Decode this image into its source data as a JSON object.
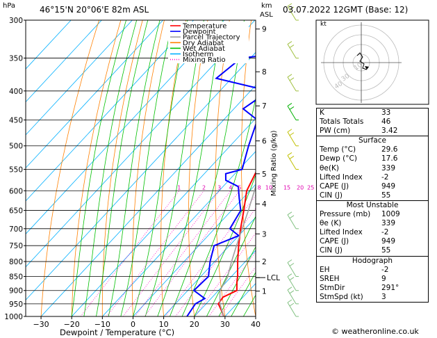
{
  "header": {
    "location": "46°15'N  20°06'E  82m  ASL",
    "pressure_unit": "hPa",
    "height_unit_line1": "km",
    "height_unit_line2": "ASL",
    "datetime": "03.07.2022  12GMT  (Base: 12)"
  },
  "legend": {
    "items": [
      {
        "label": "Temperature",
        "color": "#ff0000",
        "style": "solid"
      },
      {
        "label": "Dewpoint",
        "color": "#0000ff",
        "style": "solid"
      },
      {
        "label": "Parcel Trajectory",
        "color": "#a0a0a0",
        "style": "solid"
      },
      {
        "label": "Dry Adiabat",
        "color": "#ff8000",
        "style": "solid"
      },
      {
        "label": "Wet Adiabat",
        "color": "#00c000",
        "style": "solid"
      },
      {
        "label": "Isotherm",
        "color": "#00b0ff",
        "style": "solid"
      },
      {
        "label": "Mixing Ratio",
        "color": "#ff00c0",
        "style": "dotted"
      }
    ]
  },
  "chart_data": {
    "type": "line",
    "xlabel": "Dewpoint / Temperature (°C)",
    "ylabel_right": "Mixing Ratio (g/kg)",
    "x_ticks": [
      -30,
      -20,
      -10,
      0,
      10,
      20,
      30,
      40
    ],
    "x_range": [
      -35,
      40
    ],
    "pressure_levels": [
      300,
      350,
      400,
      450,
      500,
      550,
      600,
      650,
      700,
      750,
      800,
      850,
      900,
      950,
      1000
    ],
    "pressure_scale": "log",
    "height_km_ticks": [
      {
        "label": "9",
        "p": 311
      },
      {
        "label": "8",
        "p": 370
      },
      {
        "label": "7",
        "p": 425
      },
      {
        "label": "6",
        "p": 490
      },
      {
        "label": "5",
        "p": 560
      },
      {
        "label": "4",
        "p": 633
      },
      {
        "label": "3",
        "p": 715
      },
      {
        "label": "2",
        "p": 800
      },
      {
        "label": "LCL",
        "p": 854
      },
      {
        "label": "1",
        "p": 902
      }
    ],
    "mixing_ratio_labels": [
      "1",
      "2",
      "3",
      "4",
      "5",
      "8",
      "10",
      "15",
      "20",
      "25"
    ],
    "series": [
      {
        "name": "Temperature",
        "color": "#ff0000",
        "points": [
          [
            1000,
            29.6
          ],
          [
            980,
            27.5
          ],
          [
            950,
            24
          ],
          [
            925,
            23.5
          ],
          [
            900,
            26
          ],
          [
            870,
            23.5
          ],
          [
            850,
            22
          ],
          [
            800,
            17.5
          ],
          [
            750,
            13
          ],
          [
            700,
            8.5
          ],
          [
            650,
            4
          ],
          [
            600,
            -1
          ],
          [
            550,
            -4
          ],
          [
            500,
            -10.5
          ],
          [
            450,
            -15.5
          ],
          [
            400,
            -22.5
          ],
          [
            350,
            -30
          ],
          [
            300,
            -38.5
          ]
        ]
      },
      {
        "name": "Dewpoint",
        "color": "#0000ff",
        "points": [
          [
            1000,
            17.6
          ],
          [
            950,
            16.5
          ],
          [
            930,
            18
          ],
          [
            900,
            12
          ],
          [
            850,
            12.5
          ],
          [
            800,
            8.5
          ],
          [
            750,
            5
          ],
          [
            720,
            10
          ],
          [
            700,
            5
          ],
          [
            650,
            3
          ],
          [
            620,
            -1
          ],
          [
            590,
            -5
          ],
          [
            575,
            -11
          ],
          [
            560,
            -13
          ],
          [
            550,
            -9
          ],
          [
            500,
            -14
          ],
          [
            450,
            -19
          ],
          [
            430,
            -27
          ],
          [
            400,
            -24
          ],
          [
            380,
            -45
          ],
          [
            350,
            -43
          ],
          [
            345,
            -34
          ],
          [
            340,
            -28
          ],
          [
            300,
            -38
          ]
        ]
      },
      {
        "name": "Parcel Trajectory",
        "color": "#a0a0a0",
        "points": [
          [
            1000,
            29.6
          ],
          [
            950,
            24.5
          ],
          [
            900,
            20.5
          ],
          [
            854,
            19
          ],
          [
            800,
            15.5
          ],
          [
            750,
            12.3
          ],
          [
            700,
            9
          ],
          [
            650,
            5.5
          ],
          [
            600,
            1.5
          ],
          [
            550,
            -3
          ],
          [
            500,
            -8
          ],
          [
            450,
            -13.5
          ],
          [
            400,
            -20
          ],
          [
            350,
            -28
          ],
          [
            300,
            -38
          ]
        ]
      }
    ],
    "wind_barbs": [
      {
        "p": 300,
        "color": "#a0c040"
      },
      {
        "p": 350,
        "color": "#a0c040"
      },
      {
        "p": 400,
        "color": "#a0c040"
      },
      {
        "p": 450,
        "color": "#00b000"
      },
      {
        "p": 500,
        "color": "#c0c000"
      },
      {
        "p": 550,
        "color": "#c0c000"
      },
      {
        "p": 700,
        "color": "#80c080"
      },
      {
        "p": 850,
        "color": "#80c080"
      },
      {
        "p": 900,
        "color": "#80c080"
      },
      {
        "p": 950,
        "color": "#80c080"
      },
      {
        "p": 1000,
        "color": "#80c080"
      }
    ]
  },
  "hodograph": {
    "unit_label": "kt",
    "ring_labels": [
      "40",
      "30",
      "10"
    ]
  },
  "indices": {
    "top": [
      {
        "k": "K",
        "v": "33"
      },
      {
        "k": "Totals Totals",
        "v": "46"
      },
      {
        "k": "PW (cm)",
        "v": "3.42"
      }
    ],
    "surface_title": "Surface",
    "surface": [
      {
        "k": "Temp (°C)",
        "v": "29.6"
      },
      {
        "k": "Dewp (°C)",
        "v": "17.6"
      },
      {
        "k": "θe(K)",
        "v": "339"
      },
      {
        "k": "Lifted Index",
        "v": "-2"
      },
      {
        "k": "CAPE (J)",
        "v": "949"
      },
      {
        "k": "CIN (J)",
        "v": "55"
      }
    ],
    "mu_title": "Most Unstable",
    "mu": [
      {
        "k": "Pressure (mb)",
        "v": "1009"
      },
      {
        "k": "θe (K)",
        "v": "339"
      },
      {
        "k": "Lifted Index",
        "v": "-2"
      },
      {
        "k": "CAPE (J)",
        "v": "949"
      },
      {
        "k": "CIN (J)",
        "v": "55"
      }
    ],
    "hodo_title": "Hodograph",
    "hodo": [
      {
        "k": "EH",
        "v": "-2"
      },
      {
        "k": "SREH",
        "v": "9"
      },
      {
        "k": "StmDir",
        "v": "291°"
      },
      {
        "k": "StmSpd (kt)",
        "v": "3"
      }
    ]
  },
  "footer": "© weatheronline.co.uk"
}
